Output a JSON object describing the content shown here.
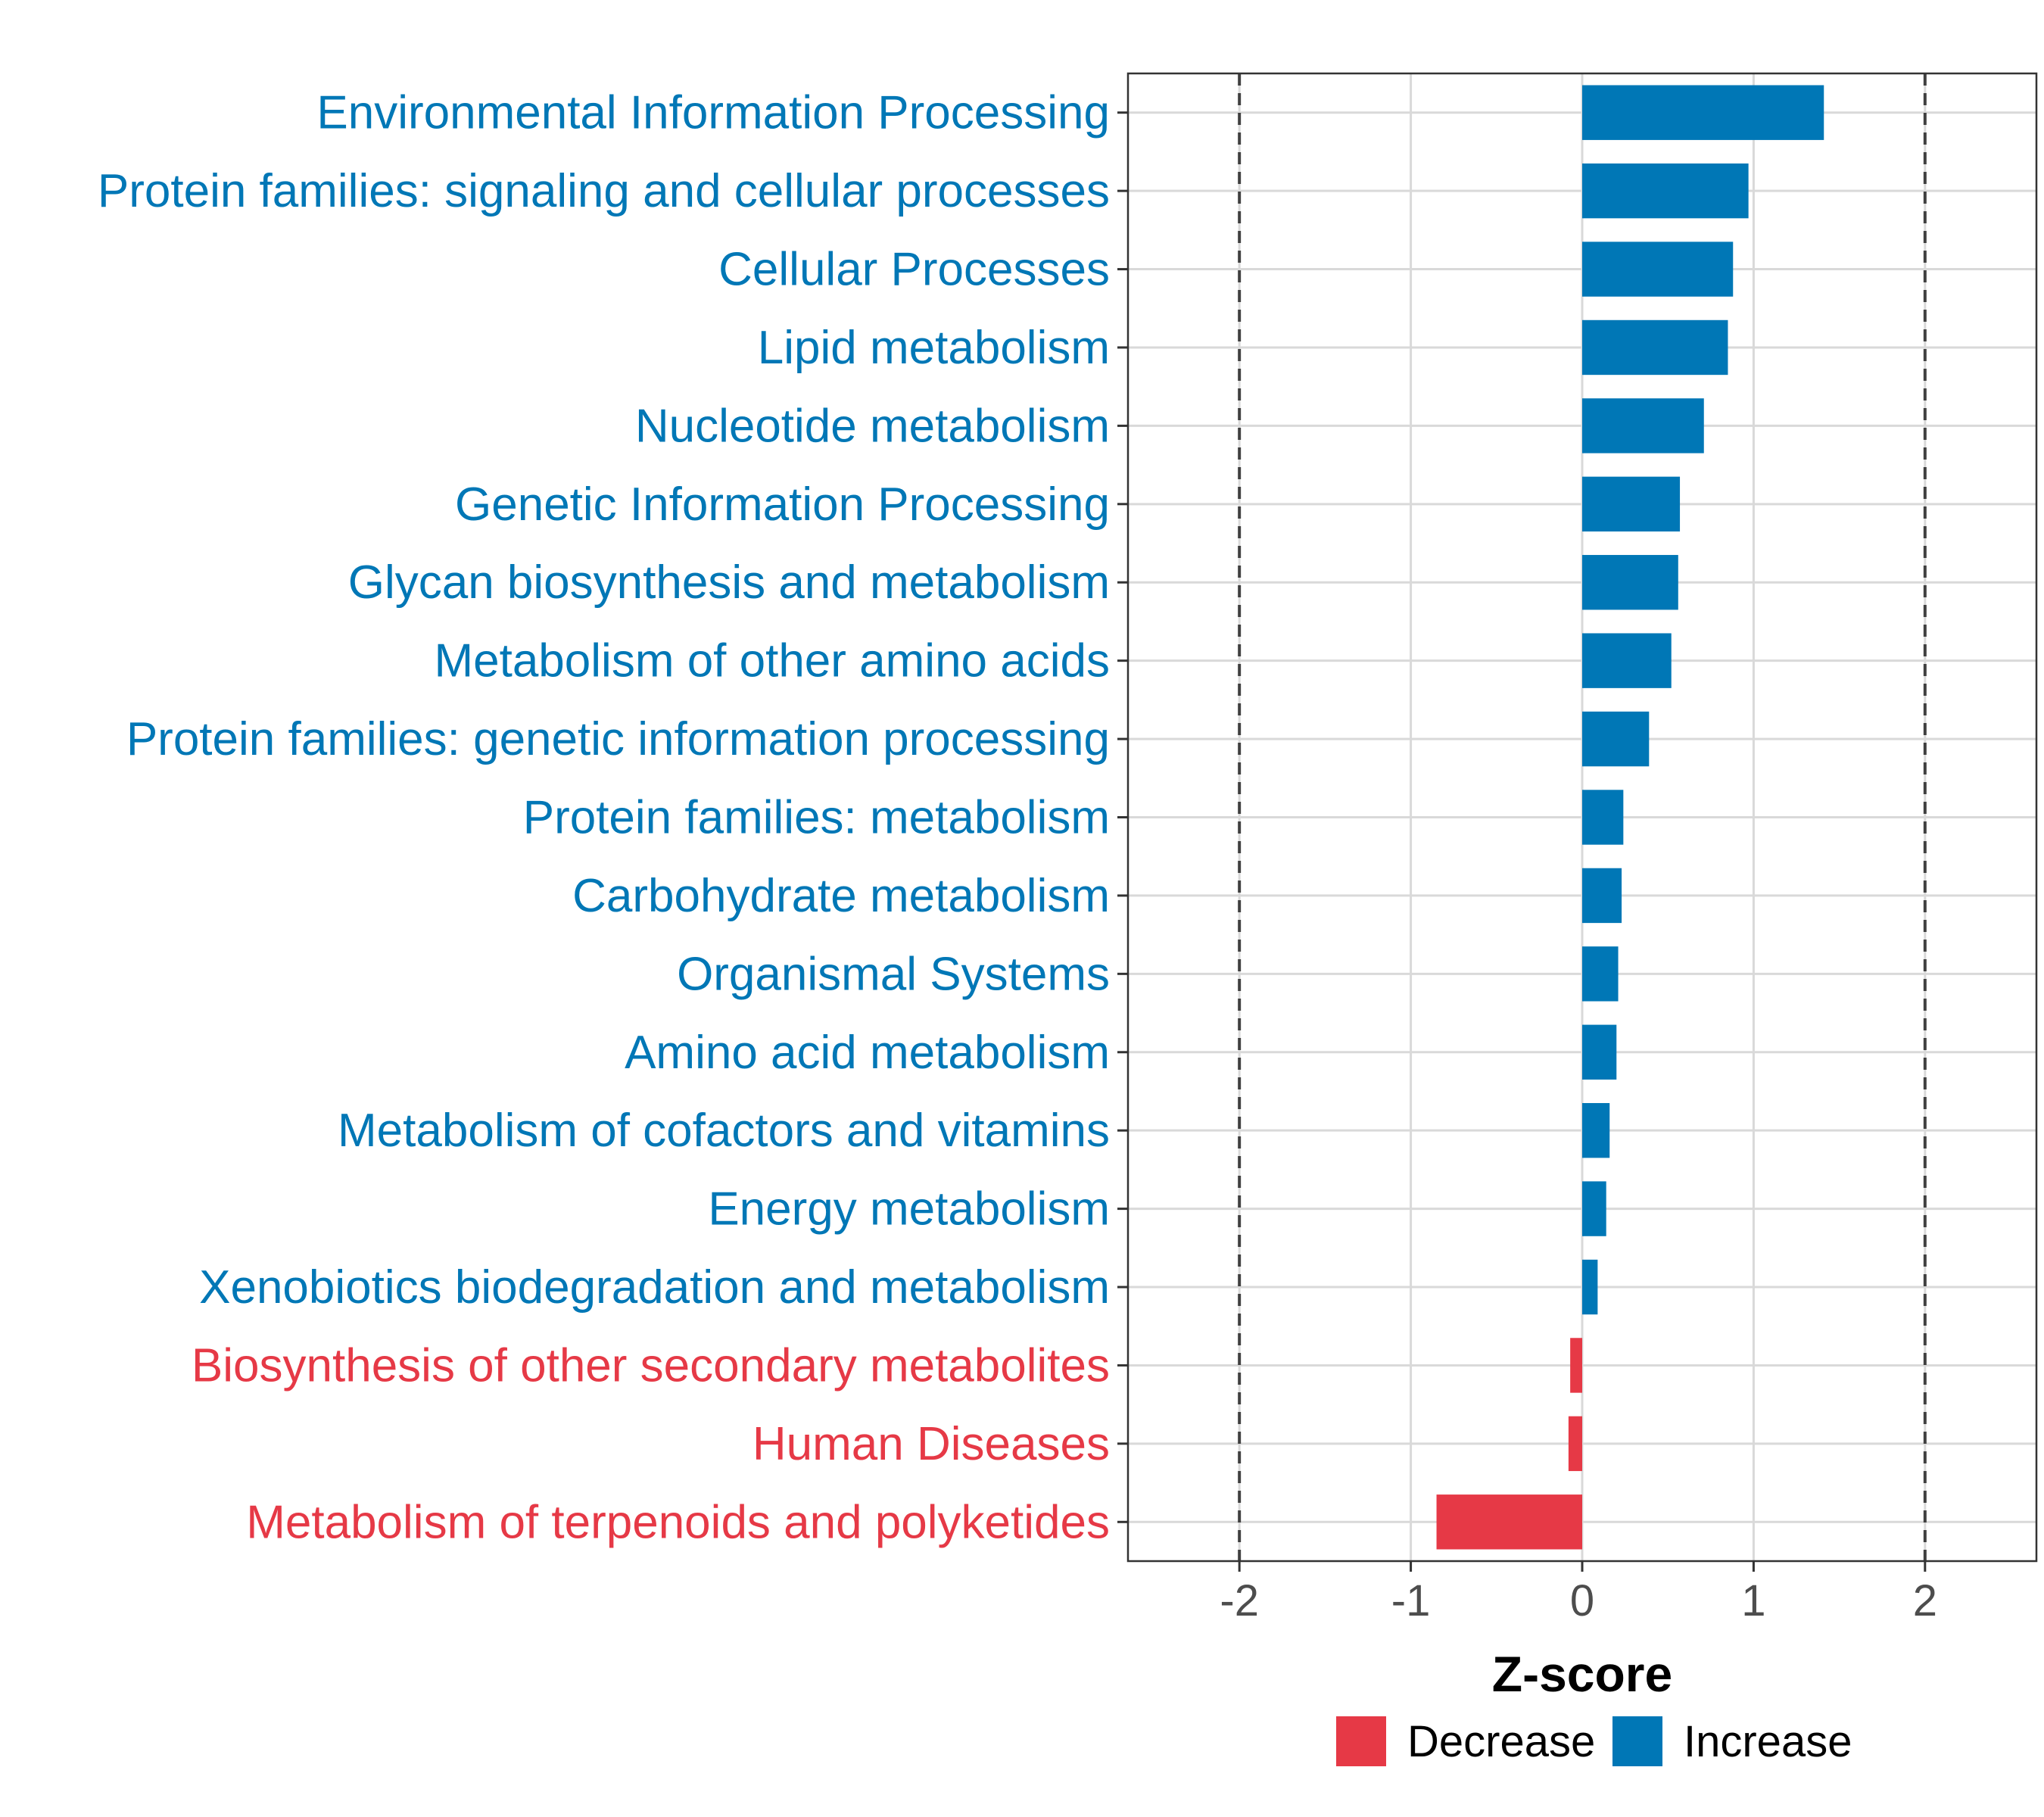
{
  "chart_data": {
    "type": "bar",
    "orientation": "horizontal",
    "xlabel": "Z-score",
    "xlim": [
      -2.65,
      2.65
    ],
    "xticks": [
      "-2",
      "-1",
      "0",
      "1",
      "2"
    ],
    "xtick_values": [
      -2,
      -1,
      0,
      1,
      2
    ],
    "reference_lines": [
      -2,
      2
    ],
    "grid": true,
    "categories": [
      "Environmental Information Processing",
      "Protein families: signaling and cellular processes",
      "Cellular Processes",
      "Lipid metabolism",
      "Nucleotide metabolism",
      "Genetic Information Processing",
      "Glycan biosynthesis and metabolism",
      "Metabolism of other amino acids",
      "Protein families: genetic information processing",
      "Protein families: metabolism",
      "Carbohydrate metabolism",
      "Organismal Systems",
      "Amino acid metabolism",
      "Metabolism of cofactors and vitamins",
      "Energy metabolism",
      "Xenobiotics biodegradation and metabolism",
      "Biosynthesis of other secondary metabolites",
      "Human Diseases",
      "Metabolism of terpenoids and polyketides"
    ],
    "values": [
      1.41,
      0.97,
      0.88,
      0.85,
      0.71,
      0.57,
      0.56,
      0.52,
      0.39,
      0.24,
      0.23,
      0.21,
      0.2,
      0.16,
      0.14,
      0.09,
      -0.07,
      -0.08,
      -0.85
    ],
    "legend": {
      "position": "bottom",
      "entries": [
        {
          "label": "Decrease",
          "color": "#e63946"
        },
        {
          "label": "Increase",
          "color": "#0077b6"
        }
      ]
    },
    "colors": {
      "increase": "#0077b6",
      "decrease": "#e63946"
    }
  }
}
